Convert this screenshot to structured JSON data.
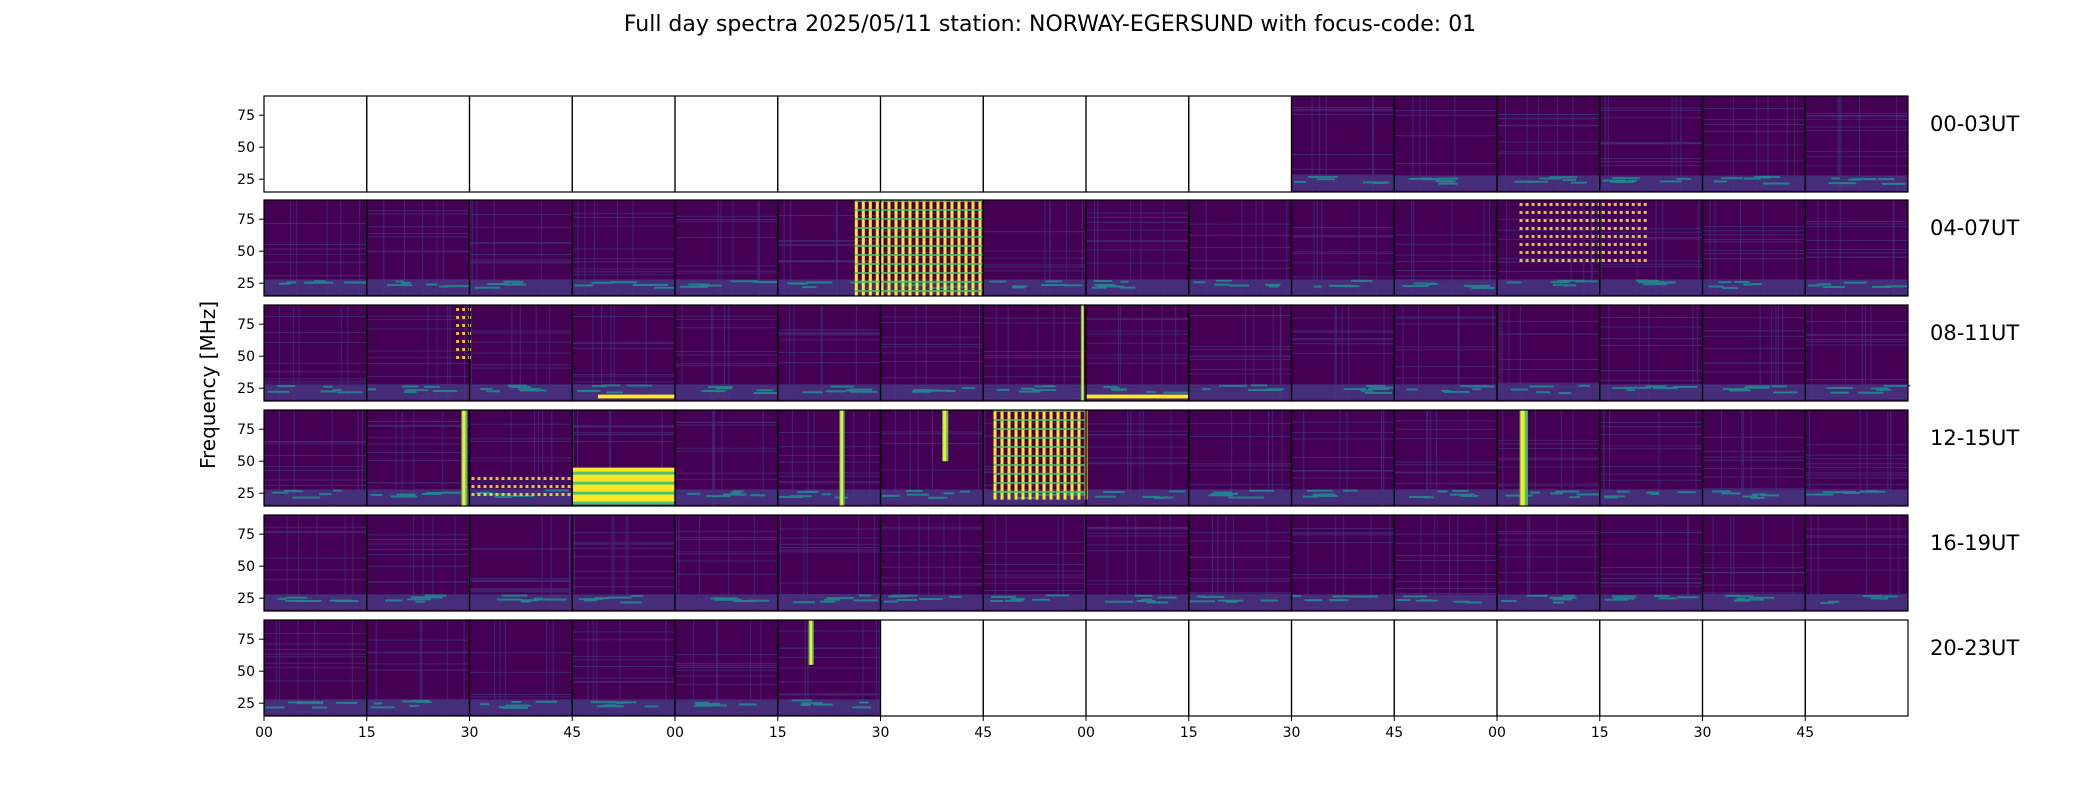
{
  "figure": {
    "title": "Full day spectra 2025/05/11 station: NORWAY-EGERSUND with focus-code: 01",
    "ylabel": "Frequency [MHz]"
  },
  "colors": {
    "background": "#440154",
    "low": "#46327e",
    "mid": "#277f8e",
    "high": "#4ac16d",
    "peak": "#fde725"
  },
  "chart_data": {
    "type": "heatmap",
    "title": "Full day spectra 2025/05/11 station: NORWAY-EGERSUND with focus-code: 01",
    "ylabel": "Frequency [MHz]",
    "xlabel": "",
    "yticks": [
      25,
      50,
      75
    ],
    "ylim": [
      15,
      90
    ],
    "xtick_labels": [
      "00",
      "15",
      "30",
      "45",
      "00",
      "15",
      "30",
      "45",
      "00",
      "15",
      "30",
      "45",
      "00",
      "15",
      "30",
      "45"
    ],
    "rows": [
      {
        "label": "00-03UT",
        "panels_with_data": [
          false,
          false,
          false,
          false,
          false,
          false,
          false,
          false,
          false,
          false,
          true,
          true,
          true,
          true,
          true,
          true
        ],
        "bursts": []
      },
      {
        "label": "04-07UT",
        "panels_with_data": [
          true,
          true,
          true,
          true,
          true,
          true,
          true,
          true,
          true,
          true,
          true,
          true,
          true,
          true,
          true,
          true
        ],
        "bursts": [
          {
            "panel": 5,
            "kind": "stripes",
            "from": 0.75,
            "to": 1.0,
            "fmin": 15,
            "fmax": 90
          },
          {
            "panel": 6,
            "kind": "stripes",
            "from": 0.0,
            "to": 1.0,
            "fmin": 15,
            "fmax": 90
          },
          {
            "panel": 12,
            "kind": "dots",
            "from": 0.2,
            "to": 1.0,
            "fmin": 40,
            "fmax": 90
          },
          {
            "panel": 13,
            "kind": "dots",
            "from": 0.0,
            "to": 0.45,
            "fmin": 40,
            "fmax": 90
          }
        ]
      },
      {
        "label": "08-11UT",
        "panels_with_data": [
          true,
          true,
          true,
          true,
          true,
          true,
          true,
          true,
          true,
          true,
          true,
          true,
          true,
          true,
          true,
          true
        ],
        "bursts": [
          {
            "panel": 1,
            "kind": "dots",
            "from": 0.85,
            "to": 1.0,
            "fmin": 50,
            "fmax": 90
          },
          {
            "panel": 3,
            "kind": "band",
            "from": 0.25,
            "to": 1.0,
            "fmin": 17,
            "fmax": 20
          },
          {
            "panel": 7,
            "kind": "vline",
            "from": 0.95,
            "to": 0.98,
            "fmin": 15,
            "fmax": 90
          },
          {
            "panel": 8,
            "kind": "band",
            "from": 0.0,
            "to": 1.0,
            "fmin": 17,
            "fmax": 20
          }
        ]
      },
      {
        "label": "12-15UT",
        "panels_with_data": [
          true,
          true,
          true,
          true,
          true,
          true,
          true,
          true,
          true,
          true,
          true,
          true,
          true,
          true,
          true,
          true
        ],
        "bursts": [
          {
            "panel": 1,
            "kind": "vline",
            "from": 0.92,
            "to": 0.98,
            "fmin": 15,
            "fmax": 90
          },
          {
            "panel": 2,
            "kind": "dots",
            "from": 0.0,
            "to": 1.0,
            "fmin": 20,
            "fmax": 40
          },
          {
            "panel": 3,
            "kind": "block",
            "from": 0.0,
            "to": 1.0,
            "fmin": 18,
            "fmax": 45
          },
          {
            "panel": 5,
            "kind": "vline",
            "from": 0.6,
            "to": 0.65,
            "fmin": 15,
            "fmax": 90
          },
          {
            "panel": 6,
            "kind": "vline",
            "from": 0.6,
            "to": 0.66,
            "fmin": 50,
            "fmax": 90
          },
          {
            "panel": 7,
            "kind": "stripes",
            "from": 0.1,
            "to": 1.0,
            "fmin": 20,
            "fmax": 90
          },
          {
            "panel": 12,
            "kind": "vline",
            "from": 0.22,
            "to": 0.3,
            "fmin": 15,
            "fmax": 90
          }
        ]
      },
      {
        "label": "16-19UT",
        "panels_with_data": [
          true,
          true,
          true,
          true,
          true,
          true,
          true,
          true,
          true,
          true,
          true,
          true,
          true,
          true,
          true,
          true
        ],
        "bursts": []
      },
      {
        "label": "20-23UT",
        "panels_with_data": [
          true,
          true,
          true,
          true,
          true,
          true,
          false,
          false,
          false,
          false,
          false,
          false,
          false,
          false,
          false,
          false
        ],
        "bursts": [
          {
            "panel": 5,
            "kind": "vline",
            "from": 0.3,
            "to": 0.35,
            "fmin": 55,
            "fmax": 90
          }
        ]
      }
    ]
  }
}
